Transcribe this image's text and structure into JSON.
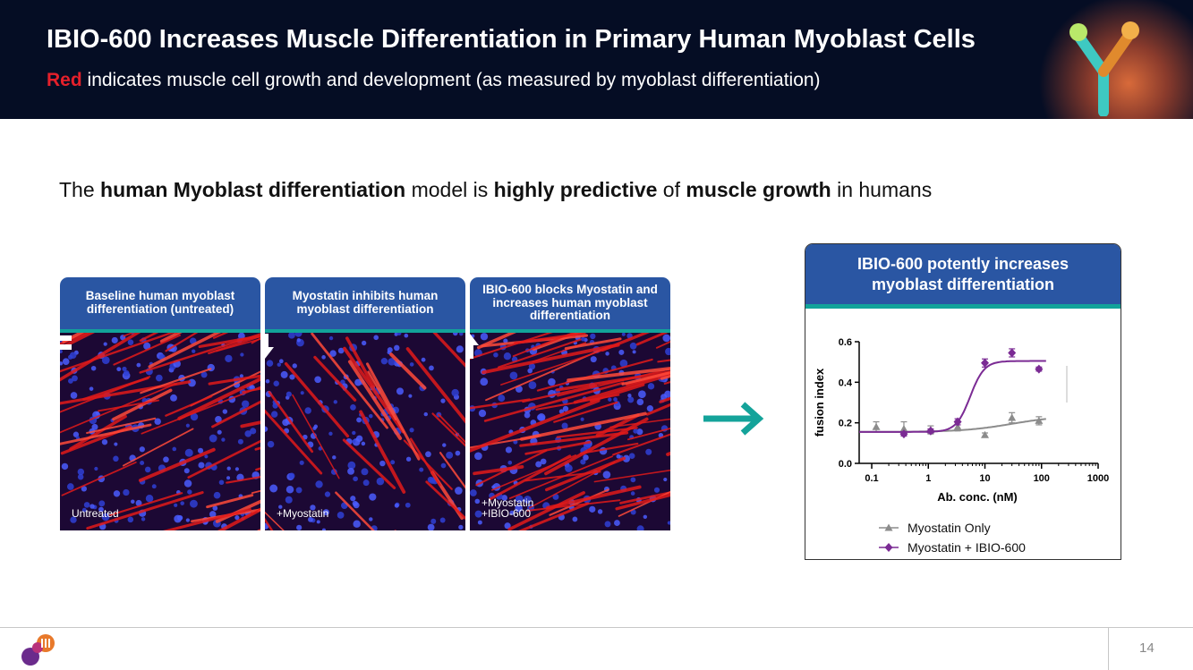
{
  "header": {
    "title": "IBIO-600 Increases Muscle Differentiation in Primary Human Myoblast Cells",
    "subtitle_highlight": "Red",
    "subtitle_rest": " indicates muscle cell growth and development (as measured by myoblast differentiation)"
  },
  "tagline": {
    "p1": "The ",
    "b1": "human Myoblast differentiation",
    "p2": " model is ",
    "b2": "highly predictive",
    "p3": " of ",
    "b3": "muscle growth",
    "p4": " in humans"
  },
  "panels": [
    {
      "header": "Baseline human myoblast differentiation (untreated)",
      "label_lines": [
        "Untreated"
      ],
      "indicator": "equals-icon"
    },
    {
      "header": "Myostatin inhibits human myoblast differentiation",
      "label_lines": [
        "+Myostatin"
      ],
      "indicator": "arrow-down-icon"
    },
    {
      "header": "IBIO-600 blocks Myostatin and increases human myoblast differentiation",
      "label_lines": [
        "+Myostatin",
        "+IBIO-600"
      ],
      "indicator": "arrow-up-icon"
    }
  ],
  "card": {
    "title": "IBIO-600 potently increases myoblast differentiation"
  },
  "chart_data": {
    "type": "scatter",
    "xlabel": "Ab. conc. (nM)",
    "ylabel": "fusion index",
    "xscale": "log",
    "xlim": [
      0.06,
      1000
    ],
    "ylim": [
      0,
      0.6
    ],
    "xticks": [
      0.1,
      1,
      10,
      100,
      1000
    ],
    "xtick_labels": [
      "0.1",
      "1",
      "10",
      "100",
      "1000"
    ],
    "yticks": [
      0.0,
      0.2,
      0.4,
      0.6
    ],
    "ytick_labels": [
      "0.0",
      "0.2",
      "0.4",
      "0.6"
    ],
    "series": [
      {
        "name": "Myostatin Only",
        "color": "#8c8c8c",
        "marker": "triangle",
        "x": [
          0.12,
          0.37,
          1.1,
          3.3,
          10,
          30,
          90
        ],
        "y": [
          0.18,
          0.17,
          0.165,
          0.18,
          0.14,
          0.225,
          0.21
        ],
        "err": [
          0.025,
          0.035,
          0.02,
          0.02,
          0.01,
          0.025,
          0.02
        ],
        "fit": {
          "bottom": 0.155,
          "top": 0.235,
          "ec50": 30,
          "hill": 1.0
        }
      },
      {
        "name": "Myostatin + IBIO-600",
        "color": "#7b2b94",
        "marker": "diamond",
        "x": [
          0.37,
          1.1,
          3.3,
          10,
          30,
          90
        ],
        "y": [
          0.145,
          0.16,
          0.205,
          0.495,
          0.545,
          0.465
        ],
        "err": [
          0.01,
          0.01,
          0.015,
          0.02,
          0.02,
          0.01
        ],
        "fit": {
          "bottom": 0.155,
          "top": 0.505,
          "ec50": 5.5,
          "hill": 3.5
        }
      }
    ],
    "legend": "bottom"
  },
  "footer": {
    "page_number": "14"
  }
}
